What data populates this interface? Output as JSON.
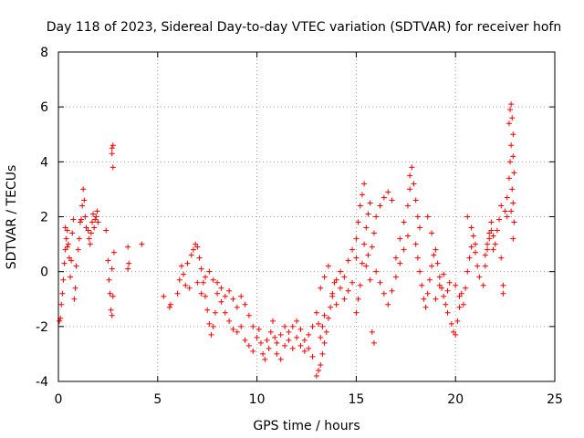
{
  "chart_data": {
    "type": "scatter",
    "title": "Day 118 of 2023, Sidereal Day-to-day VTEC variation (SDTVAR) for receiver hofn",
    "xlabel": "GPS time / hours",
    "ylabel": "SDTVAR / TECUs",
    "xlim": [
      0,
      25
    ],
    "ylim": [
      -4,
      8
    ],
    "xticks": [
      0,
      5,
      10,
      15,
      20,
      25
    ],
    "yticks": [
      -4,
      -2,
      0,
      2,
      4,
      6,
      8
    ],
    "grid": true,
    "marker": "+",
    "series": [
      {
        "name": "SDTVAR",
        "color": "#ff0000",
        "points": [
          [
            0.05,
            -1.8
          ],
          [
            0.1,
            -1.7
          ],
          [
            0.15,
            -1.2
          ],
          [
            0.2,
            -0.8
          ],
          [
            0.25,
            -0.3
          ],
          [
            0.3,
            0.3
          ],
          [
            0.35,
            0.8
          ],
          [
            0.4,
            1.2
          ],
          [
            0.45,
            1.5
          ],
          [
            0.5,
            1.0
          ],
          [
            0.55,
            0.5
          ],
          [
            0.6,
            -0.2
          ],
          [
            0.65,
            0.4
          ],
          [
            0.7,
            1.4
          ],
          [
            0.75,
            1.9
          ],
          [
            0.8,
            -1.0
          ],
          [
            0.85,
            -0.6
          ],
          [
            0.9,
            0.2
          ],
          [
            0.35,
            1.6
          ],
          [
            0.45,
            0.9
          ],
          [
            1.0,
            0.8
          ],
          [
            1.05,
            1.2
          ],
          [
            1.1,
            1.8
          ],
          [
            1.15,
            1.9
          ],
          [
            1.2,
            2.4
          ],
          [
            1.25,
            3.0
          ],
          [
            1.3,
            2.6
          ],
          [
            1.35,
            2.0
          ],
          [
            1.4,
            1.6
          ],
          [
            1.5,
            1.5
          ],
          [
            1.55,
            1.2
          ],
          [
            1.6,
            1.0
          ],
          [
            1.65,
            1.4
          ],
          [
            1.7,
            1.8
          ],
          [
            1.75,
            2.1
          ],
          [
            1.8,
            1.6
          ],
          [
            1.85,
            1.9
          ],
          [
            1.9,
            2.0
          ],
          [
            1.95,
            2.2
          ],
          [
            2.0,
            1.8
          ],
          [
            2.4,
            1.5
          ],
          [
            2.5,
            0.4
          ],
          [
            2.55,
            -0.3
          ],
          [
            2.6,
            -0.8
          ],
          [
            2.65,
            -1.4
          ],
          [
            2.7,
            -1.6
          ],
          [
            2.75,
            -0.9
          ],
          [
            2.7,
            0.1
          ],
          [
            2.75,
            3.8
          ],
          [
            2.7,
            4.3
          ],
          [
            2.75,
            4.6
          ],
          [
            2.7,
            4.5
          ],
          [
            2.8,
            0.7
          ],
          [
            3.5,
            0.9
          ],
          [
            3.55,
            0.3
          ],
          [
            3.5,
            0.1
          ],
          [
            4.2,
            1.0
          ],
          [
            5.3,
            -0.9
          ],
          [
            5.6,
            -1.3
          ],
          [
            5.65,
            -1.2
          ],
          [
            6.0,
            -0.8
          ],
          [
            6.1,
            -0.3
          ],
          [
            6.2,
            0.2
          ],
          [
            6.3,
            -0.1
          ],
          [
            6.4,
            -0.5
          ],
          [
            6.5,
            0.3
          ],
          [
            6.6,
            -0.6
          ],
          [
            6.7,
            0.6
          ],
          [
            6.8,
            0.8
          ],
          [
            6.9,
            1.0
          ],
          [
            7.0,
            0.9
          ],
          [
            7.1,
            0.5
          ],
          [
            7.2,
            0.1
          ],
          [
            7.3,
            -0.4
          ],
          [
            7.4,
            -0.9
          ],
          [
            7.5,
            -1.4
          ],
          [
            7.6,
            -1.9
          ],
          [
            7.7,
            -2.3
          ],
          [
            7.8,
            -2.0
          ],
          [
            7.9,
            -1.5
          ],
          [
            7.0,
            -0.4
          ],
          [
            7.2,
            -0.8
          ],
          [
            7.4,
            -0.2
          ],
          [
            7.6,
            0.0
          ],
          [
            7.8,
            -0.3
          ],
          [
            8.0,
            -0.8
          ],
          [
            8.2,
            -1.1
          ],
          [
            8.4,
            -1.5
          ],
          [
            8.6,
            -1.8
          ],
          [
            8.8,
            -2.1
          ],
          [
            8.0,
            -0.4
          ],
          [
            8.2,
            -0.6
          ],
          [
            8.4,
            -0.9
          ],
          [
            8.6,
            -0.7
          ],
          [
            8.8,
            -1.0
          ],
          [
            9.0,
            -1.3
          ],
          [
            9.2,
            -0.9
          ],
          [
            9.4,
            -1.2
          ],
          [
            9.6,
            -1.6
          ],
          [
            9.8,
            -2.0
          ],
          [
            9.0,
            -2.2
          ],
          [
            9.2,
            -2.0
          ],
          [
            9.4,
            -2.5
          ],
          [
            9.6,
            -2.7
          ],
          [
            9.8,
            -2.9
          ],
          [
            10.0,
            -2.4
          ],
          [
            10.1,
            -2.1
          ],
          [
            10.2,
            -2.6
          ],
          [
            10.3,
            -3.0
          ],
          [
            10.4,
            -3.2
          ],
          [
            10.5,
            -2.5
          ],
          [
            10.6,
            -2.8
          ],
          [
            10.7,
            -2.2
          ],
          [
            10.8,
            -1.8
          ],
          [
            10.9,
            -2.4
          ],
          [
            11.0,
            -2.6
          ],
          [
            11.2,
            -2.3
          ],
          [
            11.4,
            -2.0
          ],
          [
            11.6,
            -2.5
          ],
          [
            11.8,
            -2.8
          ],
          [
            11.0,
            -3.0
          ],
          [
            11.2,
            -3.2
          ],
          [
            11.4,
            -2.7
          ],
          [
            11.6,
            -2.2
          ],
          [
            11.8,
            -2.0
          ],
          [
            12.0,
            -1.8
          ],
          [
            12.2,
            -2.1
          ],
          [
            12.4,
            -2.5
          ],
          [
            12.6,
            -2.8
          ],
          [
            12.8,
            -3.1
          ],
          [
            12.0,
            -2.4
          ],
          [
            12.2,
            -2.7
          ],
          [
            12.4,
            -2.9
          ],
          [
            12.6,
            -2.3
          ],
          [
            12.8,
            -2.0
          ],
          [
            13.0,
            -1.5
          ],
          [
            13.1,
            -1.9
          ],
          [
            13.2,
            -2.4
          ],
          [
            13.3,
            -2.0
          ],
          [
            13.4,
            -1.6
          ],
          [
            13.0,
            -3.8
          ],
          [
            13.1,
            -3.6
          ],
          [
            13.2,
            -3.4
          ],
          [
            13.3,
            -3.0
          ],
          [
            13.4,
            -2.6
          ],
          [
            13.5,
            -2.2
          ],
          [
            13.6,
            -1.7
          ],
          [
            13.7,
            -1.3
          ],
          [
            13.8,
            -0.8
          ],
          [
            13.9,
            -0.4
          ],
          [
            13.2,
            -0.6
          ],
          [
            13.4,
            -0.2
          ],
          [
            13.6,
            0.2
          ],
          [
            13.8,
            -0.9
          ],
          [
            14.0,
            -1.2
          ],
          [
            14.2,
            -0.6
          ],
          [
            14.4,
            -0.2
          ],
          [
            14.6,
            0.4
          ],
          [
            14.8,
            0.8
          ],
          [
            15.0,
            0.5
          ],
          [
            14.0,
            -0.3
          ],
          [
            14.2,
            0.0
          ],
          [
            14.4,
            -1.0
          ],
          [
            14.6,
            -0.7
          ],
          [
            14.8,
            -0.4
          ],
          [
            15.0,
            1.2
          ],
          [
            15.1,
            1.8
          ],
          [
            15.2,
            2.4
          ],
          [
            15.3,
            2.8
          ],
          [
            15.4,
            3.2
          ],
          [
            15.0,
            -1.5
          ],
          [
            15.1,
            -1.0
          ],
          [
            15.2,
            -0.5
          ],
          [
            15.3,
            0.3
          ],
          [
            15.4,
            1.0
          ],
          [
            15.5,
            1.6
          ],
          [
            15.6,
            2.1
          ],
          [
            15.7,
            2.5
          ],
          [
            15.8,
            -2.2
          ],
          [
            15.9,
            -2.6
          ],
          [
            15.5,
            0.2
          ],
          [
            15.6,
            0.6
          ],
          [
            15.7,
            -0.3
          ],
          [
            15.8,
            0.9
          ],
          [
            15.9,
            1.4
          ],
          [
            16.0,
            2.0
          ],
          [
            16.2,
            2.4
          ],
          [
            16.4,
            2.7
          ],
          [
            16.6,
            2.9
          ],
          [
            16.8,
            2.6
          ],
          [
            16.0,
            0.0
          ],
          [
            16.2,
            -0.4
          ],
          [
            16.4,
            -0.8
          ],
          [
            16.6,
            -1.2
          ],
          [
            16.8,
            -0.7
          ],
          [
            17.0,
            0.5
          ],
          [
            17.2,
            1.2
          ],
          [
            17.4,
            1.8
          ],
          [
            17.6,
            2.4
          ],
          [
            17.7,
            3.0
          ],
          [
            17.0,
            -0.2
          ],
          [
            17.2,
            0.3
          ],
          [
            17.4,
            0.8
          ],
          [
            17.6,
            1.3
          ],
          [
            17.7,
            3.5
          ],
          [
            17.8,
            3.8
          ],
          [
            17.9,
            3.2
          ],
          [
            18.0,
            2.6
          ],
          [
            18.1,
            2.0
          ],
          [
            18.2,
            1.6
          ],
          [
            18.0,
            1.0
          ],
          [
            18.1,
            0.5
          ],
          [
            18.2,
            0.0
          ],
          [
            18.3,
            -0.5
          ],
          [
            18.4,
            -1.0
          ],
          [
            18.5,
            -1.3
          ],
          [
            18.6,
            -0.8
          ],
          [
            18.7,
            -0.3
          ],
          [
            18.8,
            0.2
          ],
          [
            18.9,
            0.6
          ],
          [
            18.6,
            2.0
          ],
          [
            18.8,
            1.4
          ],
          [
            19.0,
            0.8
          ],
          [
            19.1,
            0.3
          ],
          [
            19.2,
            -0.2
          ],
          [
            19.3,
            -0.6
          ],
          [
            19.4,
            -0.9
          ],
          [
            19.5,
            -1.2
          ],
          [
            19.6,
            -0.7
          ],
          [
            19.7,
            -0.4
          ],
          [
            19.0,
            -1.0
          ],
          [
            19.2,
            -0.5
          ],
          [
            19.4,
            -0.1
          ],
          [
            19.6,
            -1.5
          ],
          [
            19.8,
            -1.9
          ],
          [
            19.9,
            -2.2
          ],
          [
            20.0,
            -2.3
          ],
          [
            20.1,
            -1.8
          ],
          [
            20.2,
            -1.3
          ],
          [
            20.3,
            -0.8
          ],
          [
            20.0,
            -0.5
          ],
          [
            20.2,
            -0.9
          ],
          [
            20.4,
            -1.2
          ],
          [
            20.5,
            -0.6
          ],
          [
            20.6,
            0.0
          ],
          [
            20.7,
            0.5
          ],
          [
            20.8,
            0.9
          ],
          [
            20.9,
            1.3
          ],
          [
            21.0,
            0.7
          ],
          [
            21.1,
            0.2
          ],
          [
            20.6,
            2.0
          ],
          [
            20.8,
            1.6
          ],
          [
            21.0,
            1.0
          ],
          [
            21.2,
            -0.2
          ],
          [
            21.4,
            -0.5
          ],
          [
            21.5,
            0.2
          ],
          [
            21.6,
            0.8
          ],
          [
            21.7,
            1.2
          ],
          [
            21.8,
            1.5
          ],
          [
            21.9,
            0.8
          ],
          [
            21.5,
            0.6
          ],
          [
            21.6,
            1.0
          ],
          [
            21.7,
            1.4
          ],
          [
            21.8,
            1.8
          ],
          [
            21.9,
            1.3
          ],
          [
            22.0,
            1.0
          ],
          [
            22.1,
            1.5
          ],
          [
            22.2,
            1.9
          ],
          [
            22.3,
            2.4
          ],
          [
            22.4,
            -0.5
          ],
          [
            22.4,
            -0.8
          ],
          [
            22.3,
            0.5
          ],
          [
            22.5,
            2.2
          ],
          [
            22.6,
            2.7
          ],
          [
            22.7,
            3.4
          ],
          [
            22.75,
            4.0
          ],
          [
            22.8,
            4.6
          ],
          [
            22.7,
            5.4
          ],
          [
            22.75,
            5.9
          ],
          [
            22.8,
            6.1
          ],
          [
            22.85,
            5.6
          ],
          [
            22.9,
            5.0
          ],
          [
            22.9,
            4.2
          ],
          [
            22.95,
            3.6
          ],
          [
            22.85,
            3.0
          ],
          [
            22.9,
            2.5
          ],
          [
            22.8,
            2.2
          ],
          [
            22.95,
            1.8
          ],
          [
            22.9,
            1.2
          ],
          [
            22.6,
            2.0
          ]
        ]
      }
    ]
  }
}
